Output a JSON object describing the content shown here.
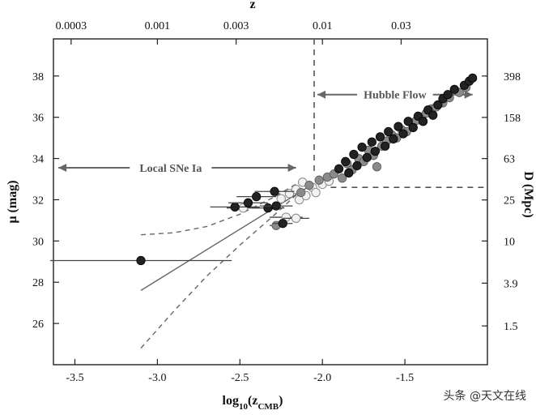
{
  "chart_data": {
    "type": "scatter",
    "xlabel_base": "log",
    "xlabel_sub": "10",
    "xlabel_arg": "(z",
    "xlabel_arg_sub": "CMB",
    "xlabel_close": ")",
    "ylabel": "μ (mag)",
    "top_xlabel": "z",
    "right_ylabel": "D (Mpc)",
    "xlim": [
      -3.63,
      -1.0
    ],
    "ylim": [
      24.0,
      39.8
    ],
    "x_ticks": [
      -3.5,
      -3.0,
      -2.5,
      -2.0,
      -1.5
    ],
    "x_tick_labels": [
      "-3.5",
      "-3.0",
      "-2.5",
      "-2.0",
      "-1.5"
    ],
    "y_ticks": [
      26,
      28,
      30,
      32,
      34,
      36,
      38
    ],
    "y_tick_labels": [
      "26",
      "28",
      "30",
      "32",
      "34",
      "36",
      "38"
    ],
    "top_ticks": [
      0.0003,
      0.001,
      0.003,
      0.01,
      0.03
    ],
    "top_tick_labels": [
      "0.0003",
      "0.001",
      "0.003",
      "0.01",
      "0.03"
    ],
    "right_ticks": [
      1.5,
      3.9,
      10,
      25,
      63,
      158,
      398
    ],
    "right_tick_labels": [
      "1.5",
      "3.9",
      "10",
      "25",
      "63",
      "158",
      "398"
    ],
    "annotations": {
      "hubble_flow": "Hubble Flow",
      "local_sne": "Local SNe Ia"
    },
    "boundary_x": -2.05,
    "boundary_y": 32.6,
    "model_line": {
      "x": [
        -3.1,
        -2.1
      ],
      "y": [
        27.6,
        32.55
      ]
    },
    "model_upper": {
      "x": [
        -3.1,
        -2.9,
        -2.7,
        -2.5,
        -2.3,
        -2.15
      ],
      "y": [
        30.3,
        30.4,
        30.7,
        31.3,
        32.1,
        32.8
      ]
    },
    "model_lower": {
      "x": [
        -3.1,
        -2.9,
        -2.7,
        -2.5,
        -2.3,
        -2.15
      ],
      "y": [
        24.8,
        26.6,
        28.3,
        29.8,
        31.2,
        32.3
      ]
    },
    "series": [
      {
        "style": "dark-filled",
        "color": "#222222",
        "points": [
          {
            "x": -3.1,
            "y": 29.05,
            "xerr": 0.55
          },
          {
            "x": -2.53,
            "y": 31.65,
            "xerr": 0.15
          },
          {
            "x": -2.45,
            "y": 31.85,
            "xerr": 0.12
          },
          {
            "x": -2.4,
            "y": 32.15,
            "xerr": 0.12
          },
          {
            "x": -2.33,
            "y": 31.6,
            "xerr": 0.1
          },
          {
            "x": -2.29,
            "y": 32.4,
            "xerr": 0.12
          },
          {
            "x": -2.28,
            "y": 31.7,
            "xerr": 0.1
          },
          {
            "x": -2.24,
            "y": 30.85,
            "xerr": 0.06
          },
          {
            "x": -1.9,
            "y": 33.5
          },
          {
            "x": -1.86,
            "y": 33.85
          },
          {
            "x": -1.84,
            "y": 33.3
          },
          {
            "x": -1.81,
            "y": 34.2
          },
          {
            "x": -1.79,
            "y": 33.65
          },
          {
            "x": -1.76,
            "y": 34.55
          },
          {
            "x": -1.73,
            "y": 34.05
          },
          {
            "x": -1.7,
            "y": 34.8
          },
          {
            "x": -1.68,
            "y": 34.35
          },
          {
            "x": -1.65,
            "y": 35.05
          },
          {
            "x": -1.62,
            "y": 34.6
          },
          {
            "x": -1.6,
            "y": 35.3
          },
          {
            "x": -1.57,
            "y": 34.95
          },
          {
            "x": -1.54,
            "y": 35.55
          },
          {
            "x": -1.51,
            "y": 35.2
          },
          {
            "x": -1.48,
            "y": 35.8
          },
          {
            "x": -1.45,
            "y": 35.5
          },
          {
            "x": -1.42,
            "y": 36.05
          },
          {
            "x": -1.39,
            "y": 35.8
          },
          {
            "x": -1.36,
            "y": 36.35
          },
          {
            "x": -1.33,
            "y": 36.1
          },
          {
            "x": -1.3,
            "y": 36.6
          },
          {
            "x": -1.27,
            "y": 36.9
          },
          {
            "x": -1.24,
            "y": 37.1
          },
          {
            "x": -1.2,
            "y": 37.35
          },
          {
            "x": -1.14,
            "y": 37.55
          },
          {
            "x": -1.11,
            "y": 37.75
          },
          {
            "x": -1.09,
            "y": 37.9
          }
        ]
      },
      {
        "style": "gray-filled",
        "color": "#8a8a8a",
        "points": [
          {
            "x": -2.28,
            "y": 30.75,
            "xerr": 0.04
          },
          {
            "x": -2.13,
            "y": 32.35
          },
          {
            "x": -2.08,
            "y": 32.7
          },
          {
            "x": -2.02,
            "y": 32.95
          },
          {
            "x": -1.97,
            "y": 33.1
          },
          {
            "x": -1.93,
            "y": 33.25
          },
          {
            "x": -1.88,
            "y": 33.05
          },
          {
            "x": -1.85,
            "y": 33.75
          },
          {
            "x": -1.82,
            "y": 33.45
          },
          {
            "x": -1.78,
            "y": 34.0
          },
          {
            "x": -1.75,
            "y": 33.85
          },
          {
            "x": -1.72,
            "y": 34.4
          },
          {
            "x": -1.69,
            "y": 34.15
          },
          {
            "x": -1.67,
            "y": 33.6
          },
          {
            "x": -1.64,
            "y": 34.6
          },
          {
            "x": -1.61,
            "y": 34.85
          },
          {
            "x": -1.58,
            "y": 35.15
          },
          {
            "x": -1.55,
            "y": 35.0
          },
          {
            "x": -1.52,
            "y": 35.4
          },
          {
            "x": -1.49,
            "y": 35.3
          },
          {
            "x": -1.46,
            "y": 35.7
          },
          {
            "x": -1.43,
            "y": 35.85
          },
          {
            "x": -1.4,
            "y": 36.0
          },
          {
            "x": -1.37,
            "y": 36.2
          },
          {
            "x": -1.34,
            "y": 36.4
          },
          {
            "x": -1.31,
            "y": 36.5
          },
          {
            "x": -1.27,
            "y": 36.7
          },
          {
            "x": -1.23,
            "y": 36.95
          },
          {
            "x": -1.17,
            "y": 37.2
          },
          {
            "x": -1.13,
            "y": 37.45
          }
        ]
      },
      {
        "style": "open",
        "color": "#999999",
        "points": [
          {
            "x": -2.48,
            "y": 31.6,
            "xerr": 0.1
          },
          {
            "x": -2.22,
            "y": 31.15,
            "xerr": 0.1
          },
          {
            "x": -2.16,
            "y": 31.1,
            "xerr": 0.08
          },
          {
            "x": -2.25,
            "y": 32.05
          },
          {
            "x": -2.2,
            "y": 32.3
          },
          {
            "x": -2.16,
            "y": 32.5
          },
          {
            "x": -2.14,
            "y": 32.0
          },
          {
            "x": -2.12,
            "y": 32.85
          },
          {
            "x": -2.1,
            "y": 32.2
          },
          {
            "x": -2.06,
            "y": 32.6
          },
          {
            "x": -2.04,
            "y": 32.35
          },
          {
            "x": -2.0,
            "y": 32.75
          },
          {
            "x": -1.96,
            "y": 32.9
          }
        ]
      }
    ]
  },
  "watermark": "头条 @天文在线"
}
